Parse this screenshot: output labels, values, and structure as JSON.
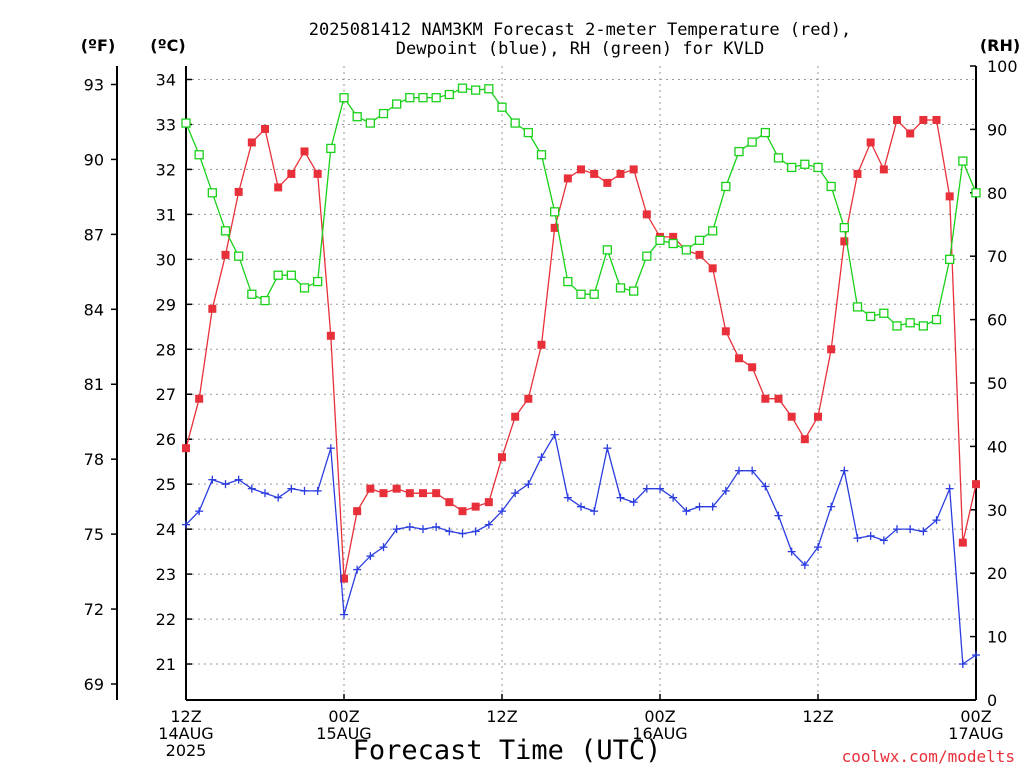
{
  "chart_data": {
    "type": "line",
    "title_lines": [
      "2025081412 NAM3KM Forecast 2-meter Temperature (red),",
      "Dewpoint (blue), RH (green) for KVLD"
    ],
    "xlabel": "Forecast Time (UTC)",
    "credit": "coolwx.com/modelts",
    "unit_labels": {
      "left_outer": "(ºF)",
      "left_inner": "(ºC)",
      "right": "(RH)"
    },
    "x_axis": {
      "range_hours": [
        0,
        60
      ],
      "ticks": [
        {
          "hour": 0,
          "lines": [
            "12Z",
            "14AUG",
            "2025"
          ]
        },
        {
          "hour": 12,
          "lines": [
            "00Z",
            "15AUG"
          ]
        },
        {
          "hour": 24,
          "lines": [
            "12Z"
          ]
        },
        {
          "hour": 36,
          "lines": [
            "00Z",
            "16AUG"
          ]
        },
        {
          "hour": 48,
          "lines": [
            "12Z"
          ]
        },
        {
          "hour": 60,
          "lines": [
            "00Z",
            "17AUG"
          ]
        }
      ]
    },
    "y_celsius": {
      "range": [
        20.2,
        34.3
      ],
      "ticks": [
        21,
        22,
        23,
        24,
        25,
        26,
        27,
        28,
        29,
        30,
        31,
        32,
        33,
        34
      ]
    },
    "y_fahrenheit": {
      "ticks": [
        69,
        72,
        75,
        78,
        81,
        84,
        87,
        90,
        93
      ]
    },
    "y_rh": {
      "range": [
        0,
        100
      ],
      "ticks": [
        0,
        10,
        20,
        30,
        40,
        50,
        60,
        70,
        80,
        90,
        100
      ]
    },
    "grid": true,
    "series": [
      {
        "name": "Temperature",
        "unit": "C",
        "color": "#e8303a",
        "marker": "filled-square",
        "values": [
          25.8,
          26.9,
          28.9,
          30.1,
          31.5,
          32.6,
          32.9,
          31.6,
          31.9,
          32.4,
          31.9,
          28.3,
          22.9,
          24.4,
          24.9,
          24.8,
          24.9,
          24.8,
          24.8,
          24.8,
          24.6,
          24.4,
          24.5,
          24.6,
          25.6,
          26.5,
          26.9,
          28.1,
          30.7,
          31.8,
          32.0,
          31.9,
          31.7,
          31.9,
          32.0,
          31.0,
          30.5,
          30.5,
          30.2,
          30.1,
          29.8,
          28.4,
          27.8,
          27.6,
          26.9,
          26.9,
          26.5,
          26.0,
          26.5,
          28.0,
          30.4,
          31.9,
          32.6,
          32.0,
          33.1,
          32.8,
          33.1,
          33.1,
          31.4,
          23.7,
          25.0
        ]
      },
      {
        "name": "Dewpoint",
        "unit": "C",
        "color": "#2b3de0",
        "marker": "plus",
        "values": [
          24.1,
          24.4,
          25.1,
          25.0,
          25.1,
          24.9,
          24.8,
          24.7,
          24.9,
          24.85,
          24.85,
          25.8,
          22.1,
          23.1,
          23.4,
          23.6,
          24.0,
          24.05,
          24.0,
          24.05,
          23.95,
          23.9,
          23.95,
          24.1,
          24.4,
          24.8,
          25.0,
          25.6,
          26.1,
          24.7,
          24.5,
          24.4,
          25.8,
          24.7,
          24.6,
          24.9,
          24.9,
          24.7,
          24.4,
          24.5,
          24.5,
          24.85,
          25.3,
          25.3,
          24.95,
          24.3,
          23.5,
          23.2,
          23.6,
          24.5,
          25.3,
          23.8,
          23.85,
          23.75,
          24.0,
          24.0,
          23.95,
          24.2,
          24.9,
          21.0,
          21.2
        ]
      },
      {
        "name": "RH",
        "unit": "%",
        "color": "#19d119",
        "marker": "open-square",
        "values": [
          91,
          86,
          80,
          74,
          70,
          64,
          63,
          67,
          67,
          65,
          66,
          87,
          95,
          92,
          91,
          92.5,
          94,
          95,
          95,
          95,
          95.5,
          96.5,
          96.2,
          96.4,
          93.5,
          91,
          89.5,
          86,
          77,
          66,
          64,
          64,
          71,
          65,
          64.5,
          70,
          72.5,
          72,
          71,
          72.5,
          74,
          81,
          86.5,
          88,
          89.5,
          85.5,
          84,
          84.5,
          84,
          81,
          74.5,
          62,
          60.5,
          61,
          59,
          59.5,
          59,
          60,
          69.5,
          85,
          80
        ]
      }
    ]
  }
}
